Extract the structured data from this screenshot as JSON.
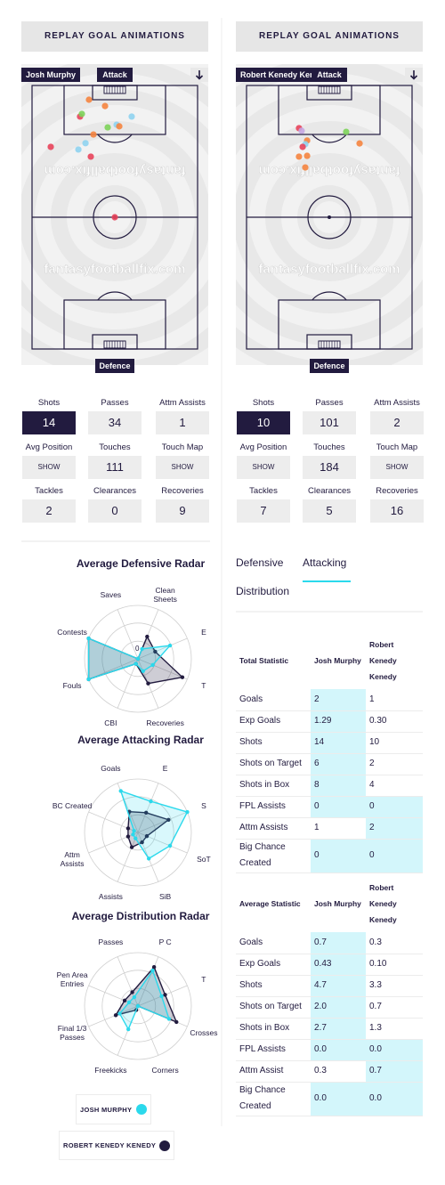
{
  "players": [
    {
      "replay": "REPLAY GOAL ANIMATIONS",
      "name": "Josh Murphy",
      "attack": "Attack",
      "defence": "Defence",
      "watermark": "fantasyfootballfix.com",
      "shots": [
        {
          "x": 34.4,
          "y": 5.4,
          "color": "#f5843f"
        },
        {
          "x": 44.1,
          "y": 7.8,
          "color": "#f5843f"
        },
        {
          "x": 29.0,
          "y": 11.8,
          "color": "#e8445b"
        },
        {
          "x": 30.1,
          "y": 10.8,
          "color": "#7dd35a"
        },
        {
          "x": 51.1,
          "y": 14.9,
          "color": "#8fd3ef"
        },
        {
          "x": 60.2,
          "y": 11.8,
          "color": "#8fd3ef"
        },
        {
          "x": 45.7,
          "y": 15.9,
          "color": "#7dd35a"
        },
        {
          "x": 52.7,
          "y": 15.5,
          "color": "#f5843f"
        },
        {
          "x": 37.1,
          "y": 18.6,
          "color": "#f5843f"
        },
        {
          "x": 32.3,
          "y": 21.9,
          "color": "#8fd3ef"
        },
        {
          "x": 11.3,
          "y": 23.3,
          "color": "#e8445b"
        },
        {
          "x": 28.0,
          "y": 24.3,
          "color": "#8fd3ef"
        },
        {
          "x": 35.5,
          "y": 27.0,
          "color": "#e8445b"
        },
        {
          "x": 50.0,
          "y": 50.0,
          "color": "#e8445b"
        }
      ],
      "stats": [
        {
          "label": "Shots",
          "value": 14
        },
        {
          "label": "Passes",
          "value": 34
        },
        {
          "label": "Attm Assists",
          "value": 1
        },
        {
          "label": "Avg Position",
          "value": "SHOW"
        },
        {
          "label": "Touches",
          "value": 111
        },
        {
          "label": "Touch Map",
          "value": "SHOW"
        },
        {
          "label": "Tackles",
          "value": 2
        },
        {
          "label": "Clearances",
          "value": 0
        },
        {
          "label": "Recoveries",
          "value": 9
        }
      ],
      "selected_stat": 0
    },
    {
      "replay": "REPLAY GOAL ANIMATIONS",
      "name": "Robert Kenedy Kenedy",
      "attack": "Attack",
      "defence": "Defence",
      "watermark": "fantasyfootballfix.com",
      "shots": [
        {
          "x": 31.7,
          "y": 16.2,
          "color": "#e8445b"
        },
        {
          "x": 33.3,
          "y": 17.2,
          "color": "#c5a7e3"
        },
        {
          "x": 36.6,
          "y": 20.9,
          "color": "#f5843f"
        },
        {
          "x": 35.5,
          "y": 22.3,
          "color": "#8fd3ef"
        },
        {
          "x": 33.9,
          "y": 23.3,
          "color": "#e8445b"
        },
        {
          "x": 31.7,
          "y": 27.0,
          "color": "#f5843f"
        },
        {
          "x": 36.6,
          "y": 26.7,
          "color": "#f5843f"
        },
        {
          "x": 35.5,
          "y": 31.1,
          "color": "#f5843f"
        },
        {
          "x": 60.2,
          "y": 17.6,
          "color": "#7dd35a"
        },
        {
          "x": 68.3,
          "y": 22.0,
          "color": "#f5843f"
        }
      ],
      "stats": [
        {
          "label": "Shots",
          "value": 10
        },
        {
          "label": "Passes",
          "value": 101
        },
        {
          "label": "Attm Assists",
          "value": 2
        },
        {
          "label": "Avg Position",
          "value": "SHOW"
        },
        {
          "label": "Touches",
          "value": 184
        },
        {
          "label": "Touch Map",
          "value": "SHOW"
        },
        {
          "label": "Tackles",
          "value": 7
        },
        {
          "label": "Clearances",
          "value": 5
        },
        {
          "label": "Recoveries",
          "value": 16
        }
      ],
      "selected_stat": 0
    }
  ],
  "chart_data": [
    {
      "type": "radar",
      "title": "Average Defensive Radar",
      "center_label": "0",
      "axes": [
        "Saves",
        "Clean Sheets",
        "E",
        "T",
        "Recoveries",
        "CBI",
        "Fouls",
        "Contests"
      ],
      "rlim": [
        0,
        100
      ],
      "rticks": [
        33,
        67,
        100
      ],
      "series": [
        {
          "values": [
            0,
            20,
            65,
            30,
            25,
            10,
            100,
            100
          ]
        },
        {
          "values": [
            0,
            45,
            35,
            90,
            50,
            10,
            100,
            100
          ]
        }
      ]
    },
    {
      "type": "radar",
      "title": "Average Attacking Radar",
      "axes": [
        "Goals",
        "E",
        "S",
        "SoT",
        "SiB",
        "Assists",
        "Attm Assists",
        "BC Created"
      ],
      "rlim": [
        0,
        100
      ],
      "rticks": [
        33,
        67,
        100
      ],
      "series": [
        {
          "values": [
            84,
            63,
            100,
            65,
            53,
            12,
            10,
            8
          ]
        },
        {
          "values": [
            42,
            40,
            62,
            18,
            20,
            30,
            20,
            20
          ]
        }
      ]
    },
    {
      "type": "radar",
      "title": "Average Distribution Radar",
      "axes": [
        "Passes",
        "P C",
        "T",
        "Crosses",
        "Corners",
        "Freekicks",
        "Final 1/3 Passes",
        "Pen Area Entries"
      ],
      "rlim": [
        0,
        100
      ],
      "rticks": [
        33,
        67,
        100
      ],
      "series": [
        {
          "values": [
            18,
            72,
            48,
            63,
            0,
            47,
            37,
            18
          ]
        },
        {
          "values": [
            28,
            79,
            55,
            78,
            0,
            8,
            45,
            27
          ]
        }
      ]
    }
  ],
  "legend": [
    {
      "name": "JOSH MURPHY",
      "color": "#2bd9ec"
    },
    {
      "name": "ROBERT KENEDY KENEDY",
      "color": "#221b3f"
    }
  ],
  "tabs": [
    "Defensive",
    "Attacking",
    "Distribution"
  ],
  "active_tab": 1,
  "tables": [
    {
      "headers": [
        "Total Statistic",
        "Josh Murphy",
        "Robert Kenedy Kenedy"
      ],
      "rows": [
        [
          "Goals",
          "2",
          "1"
        ],
        [
          "Exp Goals",
          "1.29",
          "0.30"
        ],
        [
          "Shots",
          "14",
          "10"
        ],
        [
          "Shots on Target",
          "6",
          "2"
        ],
        [
          "Shots in Box",
          "8",
          "4"
        ],
        [
          "FPL Assists",
          "0",
          "0"
        ],
        [
          "Attm Assists",
          "1",
          "2"
        ],
        [
          "Big Chance Created",
          "0",
          "0"
        ]
      ]
    },
    {
      "headers": [
        "Average Statistic",
        "Josh Murphy",
        "Robert Kenedy Kenedy"
      ],
      "rows": [
        [
          "Goals",
          "0.7",
          "0.3"
        ],
        [
          "Exp Goals",
          "0.43",
          "0.10"
        ],
        [
          "Shots",
          "4.7",
          "3.3"
        ],
        [
          "Shots on Target",
          "2.0",
          "0.7"
        ],
        [
          "Shots in Box",
          "2.7",
          "1.3"
        ],
        [
          "FPL Assists",
          "0.0",
          "0.0"
        ],
        [
          "Attm Assist",
          "0.3",
          "0.7"
        ],
        [
          "Big Chance Created",
          "0.0",
          "0.0"
        ]
      ]
    }
  ]
}
